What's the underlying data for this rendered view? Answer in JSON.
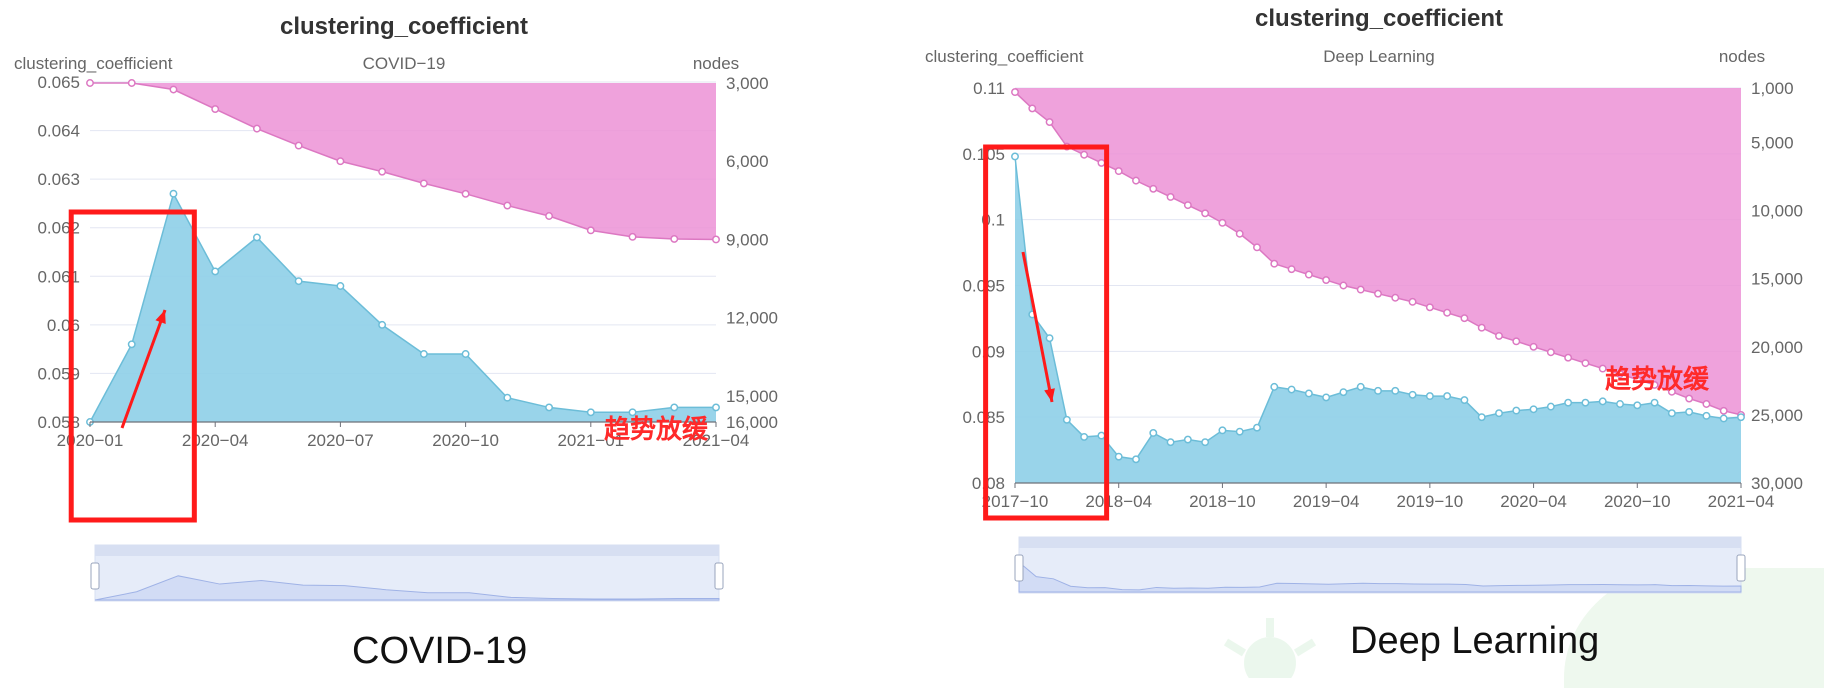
{
  "colors": {
    "area_blue": "#8ecfe8",
    "line_blue": "#6cbdd8",
    "area_pink": "#ec92d6",
    "line_pink": "#dc78c2",
    "highlight_red": "#ff1a1a",
    "grid": "#e3e6f2",
    "zoom_bg": "#e6ecf9",
    "zoom_fill": "#d2dcf5"
  },
  "annotation_text": "趋势放缓",
  "chart_data": [
    {
      "type": "area",
      "title": "clustering_coefficient",
      "subtitle": "COVID−19",
      "caption": "COVID-19",
      "y_left_name": "clustering_coefficient",
      "y_right_name": "nodes",
      "x_ticks": [
        "2020−01",
        "2020−04",
        "2020−07",
        "2020−10",
        "2021−01",
        "2021−04"
      ],
      "x_range": [
        0,
        15
      ],
      "y_left_range": [
        0.058,
        0.065
      ],
      "y_left_ticks": [
        "0.065",
        "0.064",
        "0.063",
        "0.062",
        "0.061",
        "0.06",
        "0.059",
        "0.058"
      ],
      "y_right_range": [
        3000,
        16000
      ],
      "y_right_inverted": true,
      "y_right_ticks": [
        "3,000",
        "6,000",
        "9,000",
        "12,000",
        "15,000",
        "16,000"
      ],
      "series": [
        {
          "name": "clustering_coefficient",
          "axis": "left",
          "x": [
            0,
            1,
            2,
            3,
            4,
            5,
            6,
            7,
            8,
            9,
            10,
            11,
            12,
            13,
            14,
            15
          ],
          "values": [
            0.058,
            0.0596,
            0.0627,
            0.0611,
            0.0618,
            0.0609,
            0.0608,
            0.06,
            0.0594,
            0.0594,
            0.0585,
            0.0583,
            0.0582,
            0.0582,
            0.0583,
            0.0583
          ]
        },
        {
          "name": "nodes",
          "axis": "right",
          "x": [
            0,
            1,
            2,
            3,
            4,
            5,
            6,
            7,
            8,
            9,
            10,
            11,
            12,
            13,
            14,
            15
          ],
          "values": [
            3000,
            3000,
            3250,
            4000,
            4750,
            5400,
            6000,
            6400,
            6850,
            7250,
            7700,
            8100,
            8650,
            8900,
            8980,
            9000
          ]
        }
      ],
      "highlight_box": {
        "x_start": -0.45,
        "x_end": 2.5
      },
      "arrow_direction": "up"
    },
    {
      "type": "area",
      "title": "clustering_coefficient",
      "subtitle": "Deep Learning",
      "caption": "Deep Learning",
      "y_left_name": "clustering_coefficient",
      "y_right_name": "nodes",
      "x_ticks": [
        "2017−10",
        "2018−04",
        "2018−10",
        "2019−04",
        "2019−10",
        "2020−04",
        "2020−10",
        "2021−04"
      ],
      "x_range": [
        0,
        42
      ],
      "y_left_range": [
        0.08,
        0.11
      ],
      "y_left_ticks": [
        "0.11",
        "0.105",
        "0.1",
        "0.095",
        "0.09",
        "0.085",
        "0.08"
      ],
      "y_right_range": [
        1000,
        30000
      ],
      "y_right_inverted": true,
      "y_right_ticks": [
        "1,000",
        "5,000",
        "10,000",
        "15,000",
        "20,000",
        "25,000",
        "30,000"
      ],
      "series": [
        {
          "name": "clustering_coefficient",
          "axis": "left",
          "x": [
            0,
            1,
            2,
            3,
            4,
            5,
            6,
            7,
            8,
            9,
            10,
            11,
            12,
            13,
            14,
            15,
            16,
            17,
            18,
            19,
            20,
            21,
            22,
            23,
            24,
            25,
            26,
            27,
            28,
            29,
            30,
            31,
            32,
            33,
            34,
            35,
            36,
            37,
            38,
            39,
            40,
            41,
            42
          ],
          "values": [
            0.1048,
            0.0928,
            0.091,
            0.0848,
            0.0835,
            0.0836,
            0.082,
            0.0818,
            0.0838,
            0.0831,
            0.0833,
            0.0831,
            0.084,
            0.0839,
            0.0842,
            0.0873,
            0.0871,
            0.0868,
            0.0865,
            0.0869,
            0.0873,
            0.087,
            0.087,
            0.0867,
            0.0866,
            0.0866,
            0.0863,
            0.085,
            0.0853,
            0.0855,
            0.0856,
            0.0858,
            0.0861,
            0.0861,
            0.0862,
            0.086,
            0.0859,
            0.0861,
            0.0853,
            0.0854,
            0.0851,
            0.0849,
            0.085
          ],
          "x_wait": null
        },
        {
          "name": "nodes",
          "axis": "right",
          "x": [
            0,
            1,
            2,
            3,
            4,
            5,
            6,
            7,
            8,
            9,
            10,
            11,
            12,
            13,
            14,
            15,
            16,
            17,
            18,
            19,
            20,
            21,
            22,
            23,
            24,
            25,
            26,
            27,
            28,
            29,
            30,
            31,
            32,
            33,
            34,
            35,
            36,
            37,
            38,
            39,
            40,
            41,
            42
          ],
          "values": [
            1300,
            2500,
            3500,
            5300,
            5900,
            6500,
            7100,
            7800,
            8400,
            9000,
            9600,
            10200,
            10900,
            11700,
            12700,
            13900,
            14300,
            14700,
            15100,
            15500,
            15800,
            16100,
            16400,
            16700,
            17100,
            17500,
            17900,
            18600,
            19200,
            19600,
            20000,
            20400,
            20800,
            21200,
            21600,
            22000,
            22400,
            22800,
            23300,
            23800,
            24200,
            24700,
            25000
          ]
        }
      ],
      "highlight_box": {
        "x_start": -1.7,
        "x_end": 5.3
      },
      "arrow_direction": "down"
    }
  ]
}
